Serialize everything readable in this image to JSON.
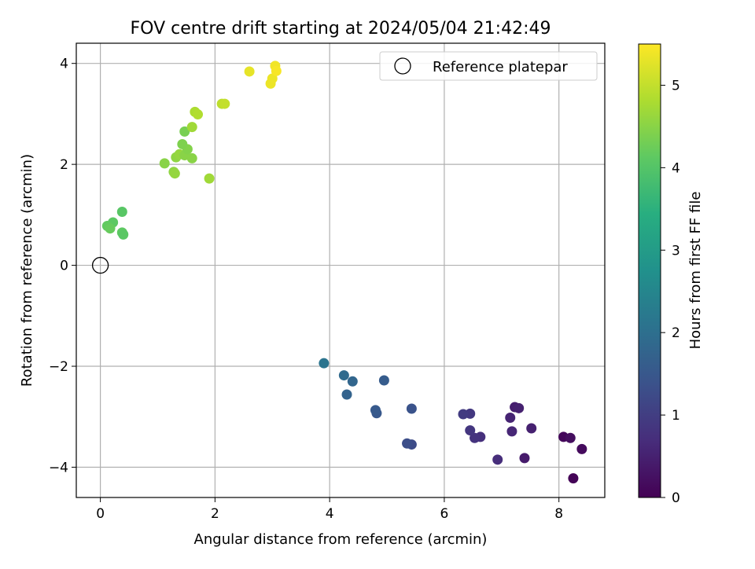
{
  "chart_data": {
    "type": "scatter",
    "title": "FOV centre drift starting at 2024/05/04 21:42:49",
    "xlabel": "Angular distance from reference (arcmin)",
    "ylabel": "Rotation from reference (arcmin)",
    "xlim": [
      -0.42,
      8.8
    ],
    "ylim": [
      -4.6,
      4.4
    ],
    "x_ticks": [
      0,
      2,
      4,
      6,
      8
    ],
    "x_tick_labels": [
      "0",
      "2",
      "4",
      "6",
      "8"
    ],
    "y_ticks": [
      -4,
      -2,
      0,
      2,
      4
    ],
    "y_tick_labels": [
      "−4",
      "−2",
      "0",
      "2",
      "4"
    ],
    "grid": true,
    "legend": {
      "placement": "top-right",
      "entries": [
        "Reference platepar"
      ]
    },
    "reference_point": {
      "name": "Reference platepar",
      "x": 0,
      "y": 0
    },
    "colorbar": {
      "label": "Hours from first FF file",
      "range": [
        0,
        5.5
      ],
      "ticks": [
        0,
        1,
        2,
        3,
        4,
        5
      ],
      "tick_labels": [
        "0",
        "1",
        "2",
        "3",
        "4",
        "5"
      ],
      "colormap": "viridis"
    },
    "series": [
      {
        "points": [
          {
            "x": 8.25,
            "y": -4.22,
            "c": 0.05
          },
          {
            "x": 8.4,
            "y": -3.64,
            "c": 0.15
          },
          {
            "x": 8.08,
            "y": -3.4,
            "c": 0.1
          },
          {
            "x": 8.2,
            "y": -3.42,
            "c": 0.2
          },
          {
            "x": 7.4,
            "y": -3.82,
            "c": 0.4
          },
          {
            "x": 7.52,
            "y": -3.23,
            "c": 0.5
          },
          {
            "x": 7.23,
            "y": -2.81,
            "c": 0.45
          },
          {
            "x": 7.3,
            "y": -2.83,
            "c": 0.5
          },
          {
            "x": 7.15,
            "y": -3.02,
            "c": 0.55
          },
          {
            "x": 7.18,
            "y": -3.29,
            "c": 0.6
          },
          {
            "x": 6.93,
            "y": -3.85,
            "c": 0.7
          },
          {
            "x": 6.63,
            "y": -3.4,
            "c": 0.75
          },
          {
            "x": 6.53,
            "y": -3.42,
            "c": 0.8
          },
          {
            "x": 6.45,
            "y": -3.27,
            "c": 0.85
          },
          {
            "x": 6.45,
            "y": -2.94,
            "c": 0.9
          },
          {
            "x": 6.33,
            "y": -2.95,
            "c": 0.95
          },
          {
            "x": 5.43,
            "y": -3.55,
            "c": 1.25
          },
          {
            "x": 5.35,
            "y": -3.53,
            "c": 1.3
          },
          {
            "x": 5.43,
            "y": -2.84,
            "c": 1.4
          },
          {
            "x": 4.95,
            "y": -2.28,
            "c": 1.6
          },
          {
            "x": 4.82,
            "y": -2.93,
            "c": 1.5
          },
          {
            "x": 4.8,
            "y": -2.87,
            "c": 1.55
          },
          {
            "x": 4.4,
            "y": -2.3,
            "c": 1.8
          },
          {
            "x": 4.3,
            "y": -2.56,
            "c": 1.75
          },
          {
            "x": 4.25,
            "y": -2.18,
            "c": 1.9
          },
          {
            "x": 3.9,
            "y": -1.94,
            "c": 2.1
          },
          {
            "x": 0.38,
            "y": 1.06,
            "c": 4.05
          },
          {
            "x": 0.22,
            "y": 0.85,
            "c": 4.1
          },
          {
            "x": 0.12,
            "y": 0.78,
            "c": 4.15
          },
          {
            "x": 0.17,
            "y": 0.73,
            "c": 4.2
          },
          {
            "x": 0.38,
            "y": 0.65,
            "c": 4.12
          },
          {
            "x": 0.4,
            "y": 0.61,
            "c": 4.08
          },
          {
            "x": 1.12,
            "y": 2.02,
            "c": 4.5
          },
          {
            "x": 1.28,
            "y": 1.85,
            "c": 4.55
          },
          {
            "x": 1.3,
            "y": 1.82,
            "c": 4.6
          },
          {
            "x": 1.32,
            "y": 2.14,
            "c": 4.55
          },
          {
            "x": 1.38,
            "y": 2.2,
            "c": 4.6
          },
          {
            "x": 1.47,
            "y": 2.18,
            "c": 4.5
          },
          {
            "x": 1.52,
            "y": 2.3,
            "c": 4.45
          },
          {
            "x": 1.43,
            "y": 2.4,
            "c": 4.4
          },
          {
            "x": 1.6,
            "y": 2.12,
            "c": 4.5
          },
          {
            "x": 1.47,
            "y": 2.65,
            "c": 4.35
          },
          {
            "x": 1.6,
            "y": 2.74,
            "c": 4.7
          },
          {
            "x": 1.65,
            "y": 3.04,
            "c": 4.8
          },
          {
            "x": 1.7,
            "y": 2.99,
            "c": 4.85
          },
          {
            "x": 1.9,
            "y": 1.72,
            "c": 4.7
          },
          {
            "x": 2.12,
            "y": 3.2,
            "c": 4.95
          },
          {
            "x": 2.17,
            "y": 3.2,
            "c": 5.0
          },
          {
            "x": 2.6,
            "y": 3.84,
            "c": 5.3
          },
          {
            "x": 2.97,
            "y": 3.6,
            "c": 5.35
          },
          {
            "x": 3.0,
            "y": 3.7,
            "c": 5.35
          },
          {
            "x": 3.05,
            "y": 3.95,
            "c": 5.4
          },
          {
            "x": 3.07,
            "y": 3.85,
            "c": 5.45
          }
        ]
      }
    ]
  }
}
